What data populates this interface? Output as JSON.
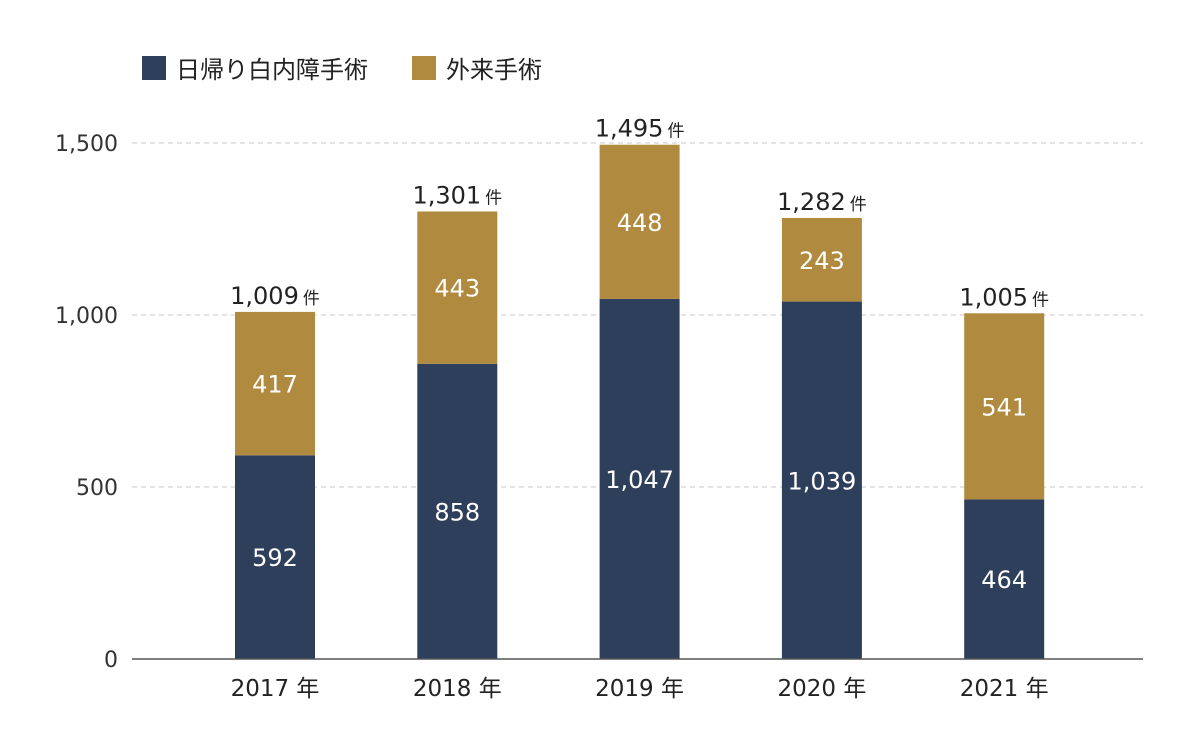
{
  "chart_data": {
    "type": "bar",
    "stacked": true,
    "categories": [
      "2017 年",
      "2018 年",
      "2019 年",
      "2020 年",
      "2021 年"
    ],
    "series": [
      {
        "name": "日帰り白内障手術",
        "color": "#2e3f5c",
        "values": [
          592,
          858,
          1047,
          1039,
          464
        ],
        "labels": [
          "592",
          "858",
          "1,047",
          "1,039",
          "464"
        ]
      },
      {
        "name": "外来手術",
        "color": "#b08a3e",
        "values": [
          417,
          443,
          448,
          243,
          541
        ],
        "labels": [
          "417",
          "443",
          "448",
          "243",
          "541"
        ]
      }
    ],
    "totals": [
      1009,
      1301,
      1495,
      1282,
      1005
    ],
    "total_labels": [
      "1,009",
      "1,301",
      "1,495",
      "1,282",
      "1,005"
    ],
    "total_unit": "件",
    "ylim": [
      0,
      1500
    ],
    "yticks": [
      0,
      500,
      1000,
      1500
    ],
    "ytick_labels": [
      "0",
      "500",
      "1,000",
      "1,500"
    ],
    "grid": true,
    "legend_position": "top-left"
  }
}
